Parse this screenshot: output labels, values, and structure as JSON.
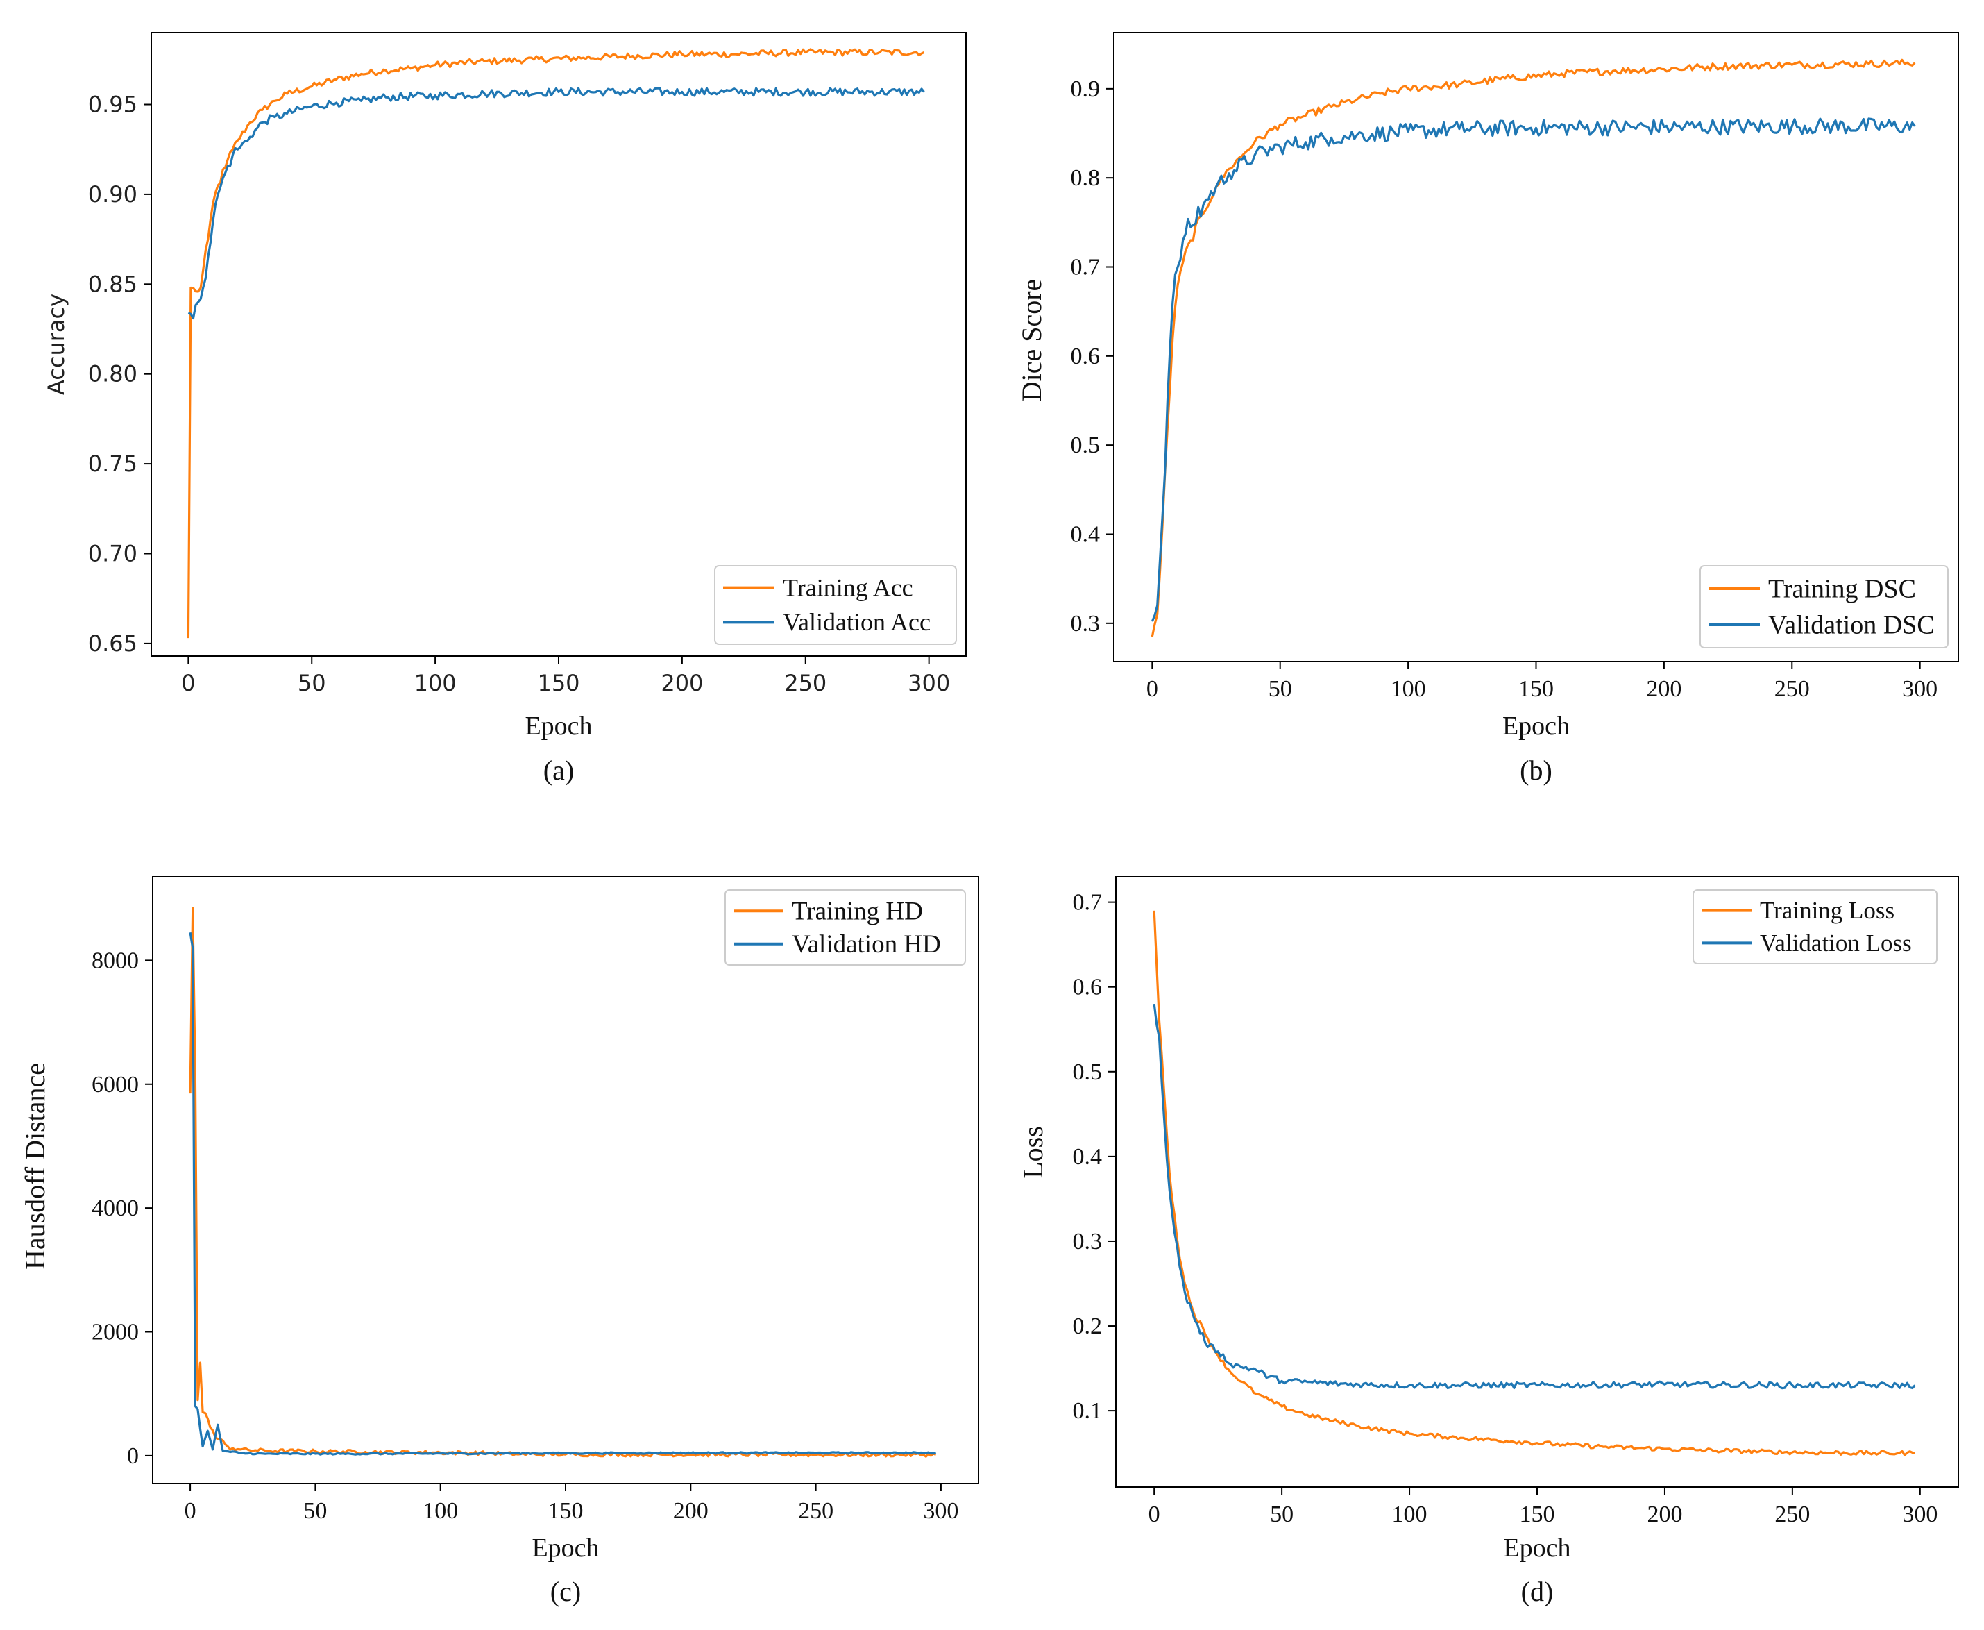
{
  "colors": {
    "training": "#ff7f0e",
    "validation": "#1f77b4",
    "axis": "#000000",
    "text": "#111111"
  },
  "chart_data": [
    {
      "type": "line",
      "panel": "(a)",
      "xlabel": "Epoch",
      "ylabel": "Accuracy",
      "xlim": [
        -15,
        315
      ],
      "ylim": [
        0.643,
        0.99
      ],
      "xticks": [
        0,
        50,
        100,
        150,
        200,
        250,
        300
      ],
      "yticks": [
        0.65,
        0.7,
        0.75,
        0.8,
        0.85,
        0.9,
        0.95
      ],
      "ytick_labels": [
        "0.65",
        "0.70",
        "0.75",
        "0.80",
        "0.85",
        "0.90",
        "0.95"
      ],
      "xtick_labels": [
        "0",
        "50",
        "100",
        "150",
        "200",
        "250",
        "300"
      ],
      "legend_position": "bottom-right",
      "series": [
        {
          "name": "Training Acc",
          "role": "training",
          "points": [
            [
              0,
              0.653
            ],
            [
              1,
              0.848
            ],
            [
              3,
              0.846
            ],
            [
              5,
              0.848
            ],
            [
              8,
              0.875
            ],
            [
              10,
              0.895
            ],
            [
              12,
              0.905
            ],
            [
              15,
              0.915
            ],
            [
              18,
              0.925
            ],
            [
              20,
              0.93
            ],
            [
              25,
              0.94
            ],
            [
              30,
              0.947
            ],
            [
              35,
              0.952
            ],
            [
              40,
              0.956
            ],
            [
              50,
              0.96
            ],
            [
              60,
              0.964
            ],
            [
              70,
              0.967
            ],
            [
              80,
              0.969
            ],
            [
              90,
              0.97
            ],
            [
              100,
              0.972
            ],
            [
              120,
              0.974
            ],
            [
              140,
              0.975
            ],
            [
              160,
              0.976
            ],
            [
              180,
              0.977
            ],
            [
              200,
              0.978
            ],
            [
              220,
              0.978
            ],
            [
              250,
              0.979
            ],
            [
              280,
              0.979
            ],
            [
              298,
              0.979
            ]
          ],
          "noise": 0.0018
        },
        {
          "name": "Validation Acc",
          "role": "validation",
          "points": [
            [
              0,
              0.834
            ],
            [
              2,
              0.831
            ],
            [
              4,
              0.84
            ],
            [
              6,
              0.848
            ],
            [
              8,
              0.865
            ],
            [
              10,
              0.885
            ],
            [
              12,
              0.9
            ],
            [
              15,
              0.912
            ],
            [
              18,
              0.922
            ],
            [
              20,
              0.925
            ],
            [
              25,
              0.932
            ],
            [
              30,
              0.94
            ],
            [
              35,
              0.943
            ],
            [
              40,
              0.945
            ],
            [
              50,
              0.949
            ],
            [
              60,
              0.951
            ],
            [
              70,
              0.952
            ],
            [
              80,
              0.954
            ],
            [
              100,
              0.955
            ],
            [
              120,
              0.956
            ],
            [
              150,
              0.957
            ],
            [
              200,
              0.957
            ],
            [
              250,
              0.957
            ],
            [
              298,
              0.957
            ]
          ],
          "noise": 0.0022
        }
      ]
    },
    {
      "type": "line",
      "panel": "(b)",
      "xlabel": "Epoch",
      "ylabel": "Dice Score",
      "xlim": [
        -15,
        315
      ],
      "ylim": [
        0.257,
        0.963
      ],
      "xticks": [
        0,
        50,
        100,
        150,
        200,
        250,
        300
      ],
      "yticks": [
        0.3,
        0.4,
        0.5,
        0.6,
        0.7,
        0.8,
        0.9
      ],
      "ytick_labels": [
        "0.3",
        "0.4",
        "0.5",
        "0.6",
        "0.7",
        "0.8",
        "0.9"
      ],
      "xtick_labels": [
        "0",
        "50",
        "100",
        "150",
        "200",
        "250",
        "300"
      ],
      "legend_position": "bottom-right",
      "series": [
        {
          "name": "Training DSC",
          "role": "training",
          "points": [
            [
              0,
              0.285
            ],
            [
              2,
              0.31
            ],
            [
              4,
              0.41
            ],
            [
              6,
              0.52
            ],
            [
              8,
              0.62
            ],
            [
              10,
              0.68
            ],
            [
              12,
              0.705
            ],
            [
              15,
              0.73
            ],
            [
              20,
              0.76
            ],
            [
              25,
              0.79
            ],
            [
              30,
              0.81
            ],
            [
              40,
              0.84
            ],
            [
              50,
              0.86
            ],
            [
              60,
              0.87
            ],
            [
              70,
              0.88
            ],
            [
              80,
              0.888
            ],
            [
              90,
              0.895
            ],
            [
              100,
              0.9
            ],
            [
              120,
              0.905
            ],
            [
              140,
              0.912
            ],
            [
              160,
              0.917
            ],
            [
              180,
              0.92
            ],
            [
              200,
              0.922
            ],
            [
              220,
              0.925
            ],
            [
              250,
              0.927
            ],
            [
              280,
              0.928
            ],
            [
              298,
              0.929
            ]
          ],
          "noise": 0.004
        },
        {
          "name": "Validation DSC",
          "role": "validation",
          "points": [
            [
              0,
              0.302
            ],
            [
              2,
              0.32
            ],
            [
              4,
              0.42
            ],
            [
              6,
              0.55
            ],
            [
              8,
              0.66
            ],
            [
              10,
              0.7
            ],
            [
              12,
              0.73
            ],
            [
              15,
              0.745
            ],
            [
              20,
              0.77
            ],
            [
              25,
              0.79
            ],
            [
              30,
              0.805
            ],
            [
              40,
              0.825
            ],
            [
              50,
              0.835
            ],
            [
              60,
              0.84
            ],
            [
              70,
              0.845
            ],
            [
              80,
              0.848
            ],
            [
              100,
              0.852
            ],
            [
              120,
              0.855
            ],
            [
              150,
              0.856
            ],
            [
              200,
              0.857
            ],
            [
              250,
              0.858
            ],
            [
              298,
              0.858
            ]
          ],
          "noise": 0.009
        }
      ]
    },
    {
      "type": "line",
      "panel": "(c)",
      "xlabel": "Epoch",
      "ylabel": "Hausdoff  Distance",
      "xlim": [
        -15,
        315
      ],
      "ylim": [
        -450,
        9350
      ],
      "xticks": [
        0,
        50,
        100,
        150,
        200,
        250,
        300
      ],
      "yticks": [
        0,
        2000,
        4000,
        6000,
        8000
      ],
      "ytick_labels": [
        "0",
        "2000",
        "4000",
        "6000",
        "8000"
      ],
      "xtick_labels": [
        "0",
        "50",
        "100",
        "150",
        "200",
        "250",
        "300"
      ],
      "legend_position": "top-right",
      "series": [
        {
          "name": "Training HD",
          "role": "training",
          "points": [
            [
              0,
              5850
            ],
            [
              1,
              8850
            ],
            [
              2,
              6200
            ],
            [
              3,
              900
            ],
            [
              4,
              1500
            ],
            [
              5,
              700
            ],
            [
              7,
              600
            ],
            [
              10,
              300
            ],
            [
              15,
              150
            ],
            [
              20,
              100
            ],
            [
              30,
              80
            ],
            [
              50,
              70
            ],
            [
              70,
              60
            ],
            [
              100,
              50
            ],
            [
              120,
              40
            ],
            [
              130,
              25
            ],
            [
              150,
              20
            ],
            [
              200,
              18
            ],
            [
              250,
              15
            ],
            [
              298,
              15
            ]
          ],
          "noise": 30
        },
        {
          "name": "Validation HD",
          "role": "validation",
          "points": [
            [
              0,
              8450
            ],
            [
              1,
              8200
            ],
            [
              2,
              800
            ],
            [
              3,
              750
            ],
            [
              5,
              150
            ],
            [
              7,
              400
            ],
            [
              9,
              100
            ],
            [
              11,
              500
            ],
            [
              13,
              80
            ],
            [
              16,
              60
            ],
            [
              20,
              40
            ],
            [
              30,
              30
            ],
            [
              60,
              30
            ],
            [
              100,
              35
            ],
            [
              150,
              40
            ],
            [
              200,
              45
            ],
            [
              250,
              45
            ],
            [
              298,
              45
            ]
          ],
          "noise": 12
        }
      ]
    },
    {
      "type": "line",
      "panel": "(d)",
      "xlabel": "Epoch",
      "ylabel": "Loss",
      "xlim": [
        -15,
        315
      ],
      "ylim": [
        0.01,
        0.73
      ],
      "xticks": [
        0,
        50,
        100,
        150,
        200,
        250,
        300
      ],
      "yticks": [
        0.1,
        0.2,
        0.3,
        0.4,
        0.5,
        0.6,
        0.7
      ],
      "ytick_labels": [
        "0.1",
        "0.2",
        "0.3",
        "0.4",
        "0.5",
        "0.6",
        "0.7"
      ],
      "xtick_labels": [
        "0",
        "50",
        "100",
        "150",
        "200",
        "250",
        "300"
      ],
      "legend_position": "top-right",
      "series": [
        {
          "name": "Training Loss",
          "role": "training",
          "points": [
            [
              0,
              0.69
            ],
            [
              2,
              0.56
            ],
            [
              4,
              0.47
            ],
            [
              6,
              0.38
            ],
            [
              8,
              0.33
            ],
            [
              10,
              0.28
            ],
            [
              12,
              0.25
            ],
            [
              15,
              0.22
            ],
            [
              20,
              0.19
            ],
            [
              25,
              0.165
            ],
            [
              30,
              0.145
            ],
            [
              40,
              0.12
            ],
            [
              50,
              0.105
            ],
            [
              60,
              0.095
            ],
            [
              70,
              0.088
            ],
            [
              80,
              0.082
            ],
            [
              90,
              0.077
            ],
            [
              100,
              0.073
            ],
            [
              120,
              0.068
            ],
            [
              140,
              0.064
            ],
            [
              160,
              0.06
            ],
            [
              180,
              0.057
            ],
            [
              200,
              0.055
            ],
            [
              220,
              0.053
            ],
            [
              250,
              0.051
            ],
            [
              280,
              0.05
            ],
            [
              298,
              0.05
            ]
          ],
          "noise": 0.0025
        },
        {
          "name": "Validation Loss",
          "role": "validation",
          "points": [
            [
              0,
              0.58
            ],
            [
              2,
              0.54
            ],
            [
              4,
              0.44
            ],
            [
              6,
              0.36
            ],
            [
              8,
              0.31
            ],
            [
              10,
              0.27
            ],
            [
              12,
              0.24
            ],
            [
              15,
              0.215
            ],
            [
              20,
              0.18
            ],
            [
              25,
              0.17
            ],
            [
              30,
              0.155
            ],
            [
              40,
              0.148
            ],
            [
              45,
              0.14
            ],
            [
              50,
              0.135
            ],
            [
              60,
              0.134
            ],
            [
              70,
              0.132
            ],
            [
              80,
              0.131
            ],
            [
              100,
              0.13
            ],
            [
              150,
              0.13
            ],
            [
              200,
              0.131
            ],
            [
              250,
              0.13
            ],
            [
              298,
              0.13
            ]
          ],
          "noise": 0.0035
        }
      ]
    }
  ]
}
